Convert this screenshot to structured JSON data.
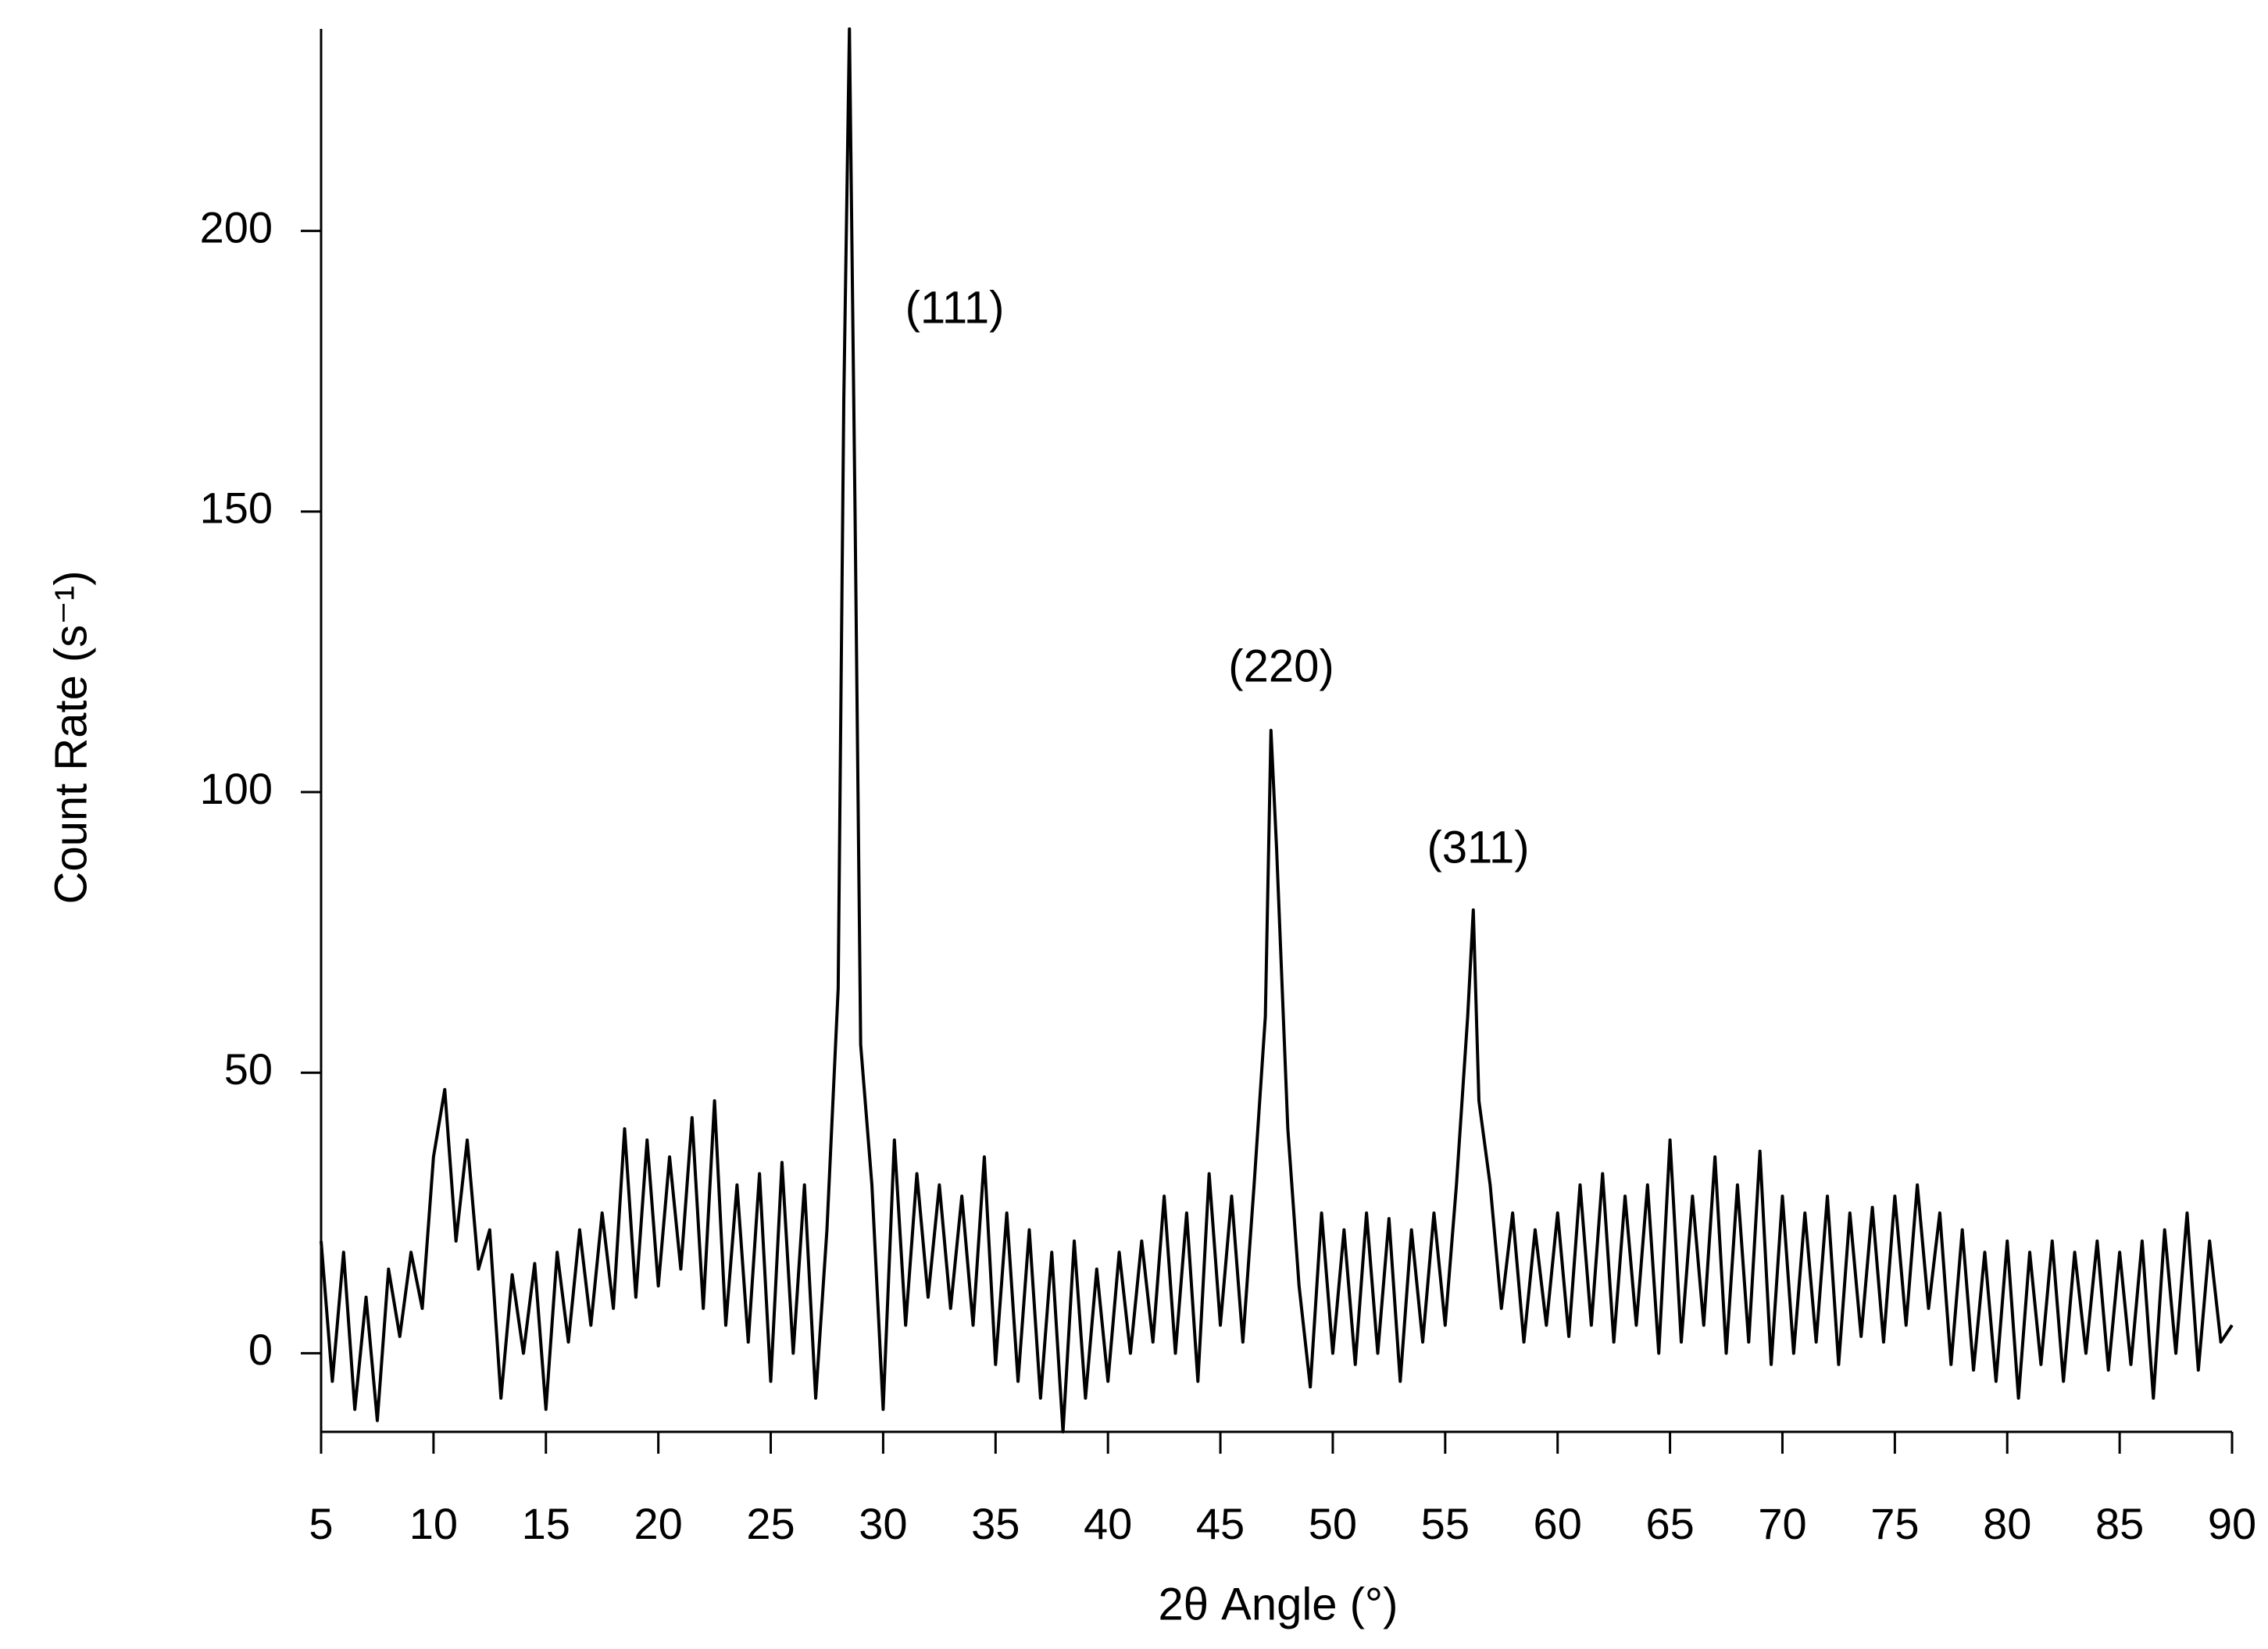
{
  "chart_data": {
    "type": "line",
    "x_label": "2θ Angle (°)",
    "y_label": "Count Rate (s⁻¹)",
    "annotations": [
      "(111)",
      "(220)",
      "(311)"
    ],
    "color": "#000000",
    "xlim": [
      5,
      90
    ],
    "ylim": [
      -14,
      236
    ],
    "xticks": [
      5,
      10,
      15,
      20,
      25,
      30,
      35,
      40,
      45,
      50,
      55,
      60,
      65,
      70,
      75,
      80,
      85,
      90
    ],
    "yticks": [
      0,
      50,
      100,
      150,
      200
    ],
    "x": [
      5,
      5.5,
      6,
      6.5,
      7,
      7.5,
      8,
      8.5,
      9,
      9.5,
      10,
      10.5,
      11,
      11.5,
      12,
      12.5,
      13,
      13.5,
      14,
      14.5,
      15,
      15.5,
      16,
      16.5,
      17,
      17.5,
      18,
      18.5,
      19,
      19.5,
      20,
      20.5,
      21,
      21.5,
      22,
      22.5,
      23,
      23.5,
      24,
      24.5,
      25,
      25.5,
      26,
      26.5,
      27,
      27.5,
      28,
      28.25,
      28.5,
      28.75,
      29,
      29.5,
      30,
      30.5,
      31,
      31.5,
      32,
      32.5,
      33,
      33.5,
      34,
      34.5,
      35,
      35.5,
      36,
      36.5,
      37,
      37.5,
      38,
      38.5,
      39,
      39.5,
      40,
      40.5,
      41,
      41.5,
      42,
      42.5,
      43,
      43.5,
      44,
      44.5,
      45,
      45.5,
      46,
      46.5,
      47,
      47.25,
      47.5,
      48,
      48.5,
      49,
      49.5,
      50,
      50.5,
      51,
      51.5,
      52,
      52.5,
      53,
      53.5,
      54,
      54.5,
      55,
      55.5,
      56,
      56.25,
      56.5,
      57,
      57.5,
      58,
      58.5,
      59,
      59.5,
      60,
      60.5,
      61,
      61.5,
      62,
      62.5,
      63,
      63.5,
      64,
      64.5,
      65,
      65.5,
      66,
      66.5,
      67,
      67.5,
      68,
      68.5,
      69,
      69.5,
      70,
      70.5,
      71,
      71.5,
      72,
      72.5,
      73,
      73.5,
      74,
      74.5,
      75,
      75.5,
      76,
      76.5,
      77,
      77.5,
      78,
      78.5,
      79,
      79.5,
      80,
      80.5,
      81,
      81.5,
      82,
      82.5,
      83,
      83.5,
      84,
      84.5,
      85,
      85.5,
      86,
      86.5,
      87,
      87.5,
      88,
      88.5,
      89,
      89.5,
      90
    ],
    "values": [
      20,
      -5,
      18,
      -10,
      10,
      -12,
      15,
      3,
      18,
      8,
      35,
      47,
      20,
      38,
      15,
      22,
      -8,
      14,
      0,
      16,
      -10,
      18,
      2,
      22,
      5,
      25,
      8,
      40,
      10,
      38,
      12,
      35,
      15,
      42,
      8,
      45,
      5,
      30,
      2,
      32,
      -5,
      34,
      0,
      30,
      -8,
      22,
      65,
      170,
      236,
      150,
      55,
      30,
      -10,
      38,
      5,
      32,
      10,
      30,
      8,
      28,
      5,
      35,
      -2,
      25,
      -5,
      22,
      -8,
      18,
      -14,
      20,
      -8,
      15,
      -5,
      18,
      0,
      20,
      2,
      28,
      0,
      25,
      -5,
      32,
      5,
      28,
      2,
      30,
      60,
      111,
      90,
      40,
      12,
      -6,
      25,
      0,
      22,
      -2,
      25,
      0,
      24,
      -5,
      22,
      2,
      25,
      5,
      30,
      60,
      79,
      45,
      30,
      8,
      25,
      2,
      22,
      5,
      25,
      3,
      30,
      5,
      32,
      2,
      28,
      5,
      30,
      0,
      38,
      2,
      28,
      5,
      35,
      0,
      30,
      2,
      36,
      -2,
      28,
      0,
      25,
      2,
      28,
      -2,
      25,
      3,
      26,
      2,
      28,
      5,
      30,
      8,
      25,
      -2,
      22,
      -3,
      18,
      -5,
      20,
      -8,
      18,
      -2,
      20,
      -5,
      18,
      0,
      20,
      -3,
      18,
      -2,
      20,
      -8,
      22,
      0,
      25,
      -3,
      20,
      2,
      5
    ]
  }
}
